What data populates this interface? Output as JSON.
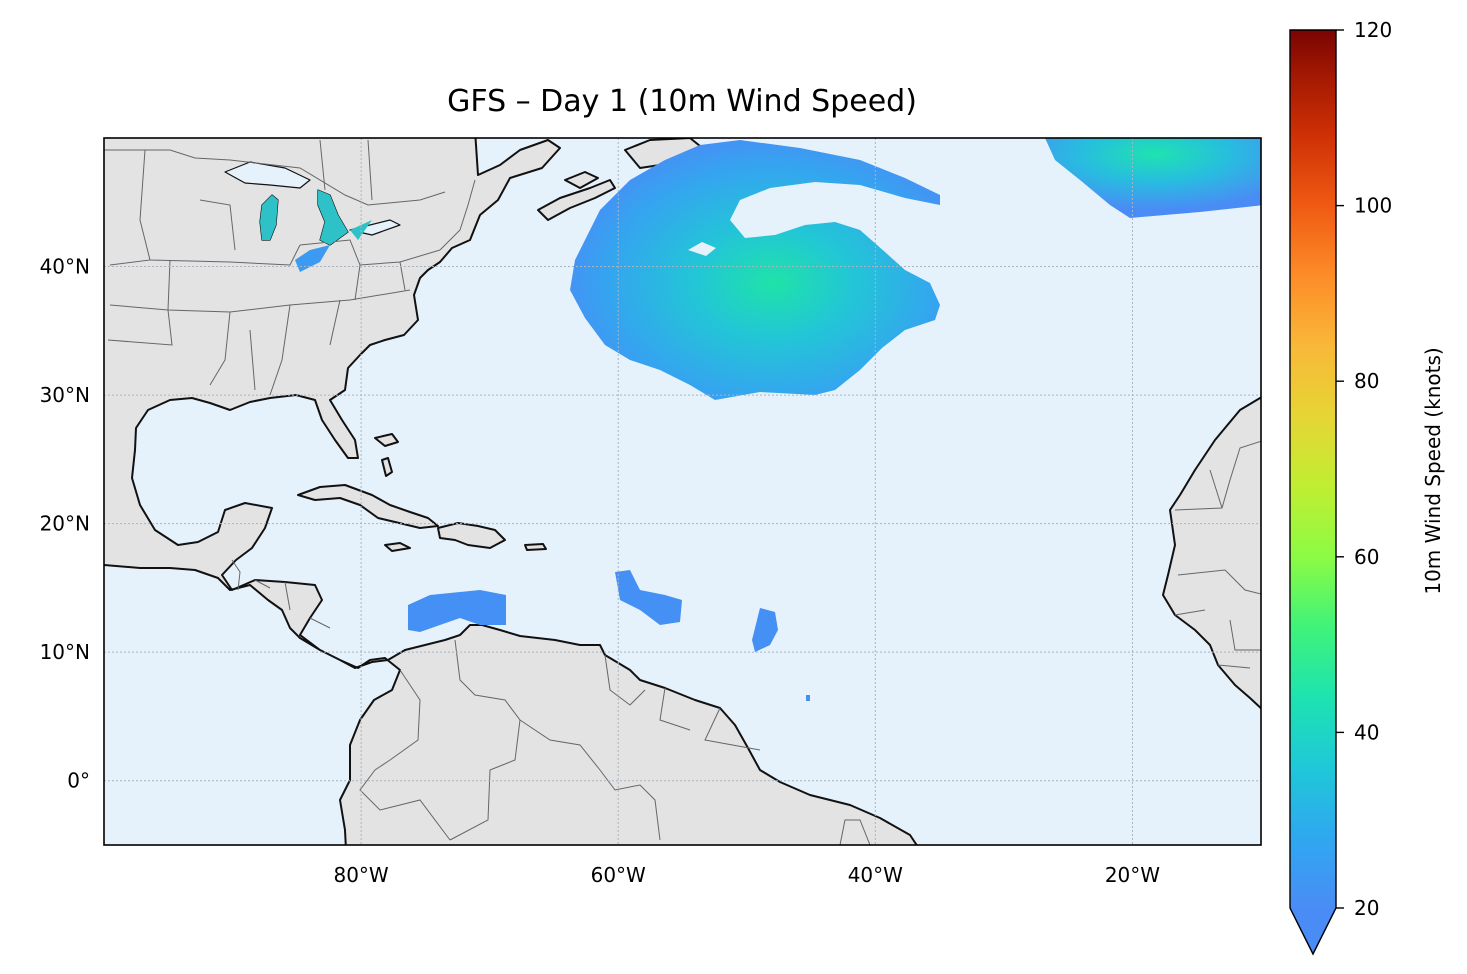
{
  "map": {
    "title": "GFS – Day 1 (10m Wind Speed)",
    "extent": {
      "lon": [
        -100,
        -10
      ],
      "lat": [
        -5,
        50
      ]
    },
    "lon_ticks": [
      {
        "lon": -80,
        "label": "80°W"
      },
      {
        "lon": -60,
        "label": "60°W"
      },
      {
        "lon": -40,
        "label": "40°W"
      },
      {
        "lon": -20,
        "label": "20°W"
      }
    ],
    "lat_ticks": [
      {
        "lat": 40,
        "label": "40°N"
      },
      {
        "lat": 30,
        "label": "30°N"
      },
      {
        "lat": 20,
        "label": "20°N"
      },
      {
        "lat": 10,
        "label": "10°N"
      },
      {
        "lat": 0,
        "label": "0°"
      }
    ],
    "gridlines": true,
    "colors": {
      "ocean": "#e6f2fb",
      "land": "#e3e3e3",
      "coastline": "#111111",
      "borders": "#666666",
      "grid": "#a9b4bf"
    }
  },
  "colorbar": {
    "label": "10m Wind Speed (knots)",
    "min": 20,
    "max": 120,
    "colormap": "turbo",
    "extend": "min",
    "ticks": [
      {
        "value": 20,
        "label": "20"
      },
      {
        "value": 40,
        "label": "40"
      },
      {
        "value": 60,
        "label": "60"
      },
      {
        "value": 80,
        "label": "80"
      },
      {
        "value": 100,
        "label": "100"
      },
      {
        "value": 120,
        "label": "120"
      }
    ]
  }
}
